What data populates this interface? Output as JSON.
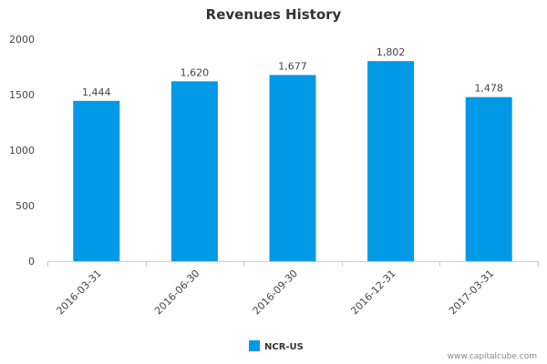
{
  "chart_data": {
    "type": "bar",
    "title": "Revenues History",
    "categories": [
      "2016-03-31",
      "2016-06-30",
      "2016-09-30",
      "2016-12-31",
      "2017-03-31"
    ],
    "series": [
      {
        "name": "NCR-US",
        "values": [
          1444,
          1620,
          1677,
          1802,
          1478
        ]
      }
    ],
    "data_labels": [
      "1,444",
      "1,620",
      "1,677",
      "1,802",
      "1,478"
    ],
    "yticks": [
      0,
      500,
      1000,
      1500,
      2000
    ],
    "ylim": [
      0,
      2000
    ],
    "xlabel": "",
    "ylabel": "",
    "grid": false,
    "legend_position": "bottom-center",
    "bar_color": "#0099e5",
    "axis_color": "#c0d0e0"
  },
  "credit": "www.capitalcube.com"
}
